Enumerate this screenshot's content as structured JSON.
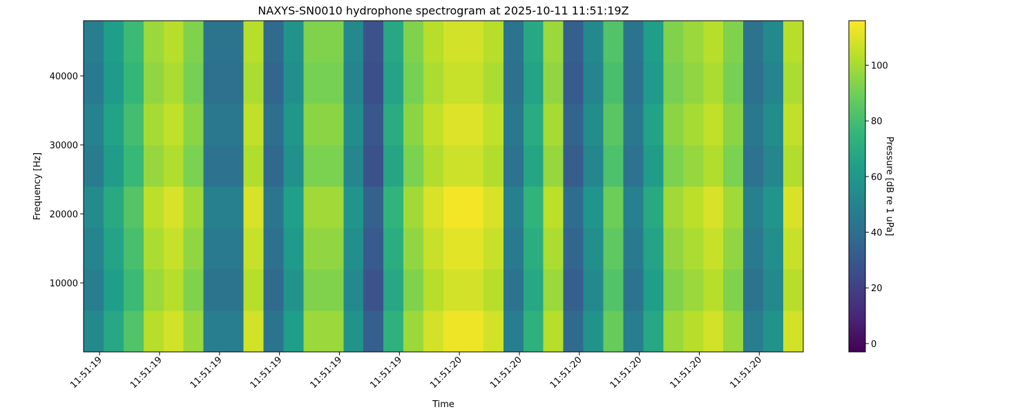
{
  "chart_data": {
    "type": "heatmap",
    "title": "NAXYS-SN0010 hydrophone spectrogram at 2025-10-11 11:51:19Z",
    "x_label": "Time",
    "y_label": "Frequency [Hz]",
    "colorbar_label": "Pressure [dB re 1 uPa]",
    "colormap": "viridis",
    "x": [
      19.085,
      19.135,
      19.185,
      19.235,
      19.285,
      19.335,
      19.385,
      19.435,
      19.485,
      19.535,
      19.585,
      19.635,
      19.685,
      19.735,
      19.785,
      19.835,
      19.885,
      19.935,
      19.985,
      20.035,
      20.085,
      20.135,
      20.185,
      20.235,
      20.285,
      20.335,
      20.385,
      20.435,
      20.485,
      20.535,
      20.585,
      20.635,
      20.685,
      20.735,
      20.785,
      20.835
    ],
    "y": [
      3000,
      9000,
      15000,
      21000,
      27000,
      33000,
      39000,
      45000
    ],
    "z": [
      [
        53,
        68,
        83,
        103,
        108,
        98,
        48,
        48,
        108,
        43,
        63,
        98,
        98,
        58,
        33,
        73,
        98,
        108,
        113,
        113,
        108,
        48,
        73,
        103,
        38,
        58,
        88,
        48,
        68,
        98,
        103,
        108,
        98,
        48,
        58,
        108
      ],
      [
        48,
        63,
        78,
        98,
        103,
        93,
        43,
        43,
        103,
        38,
        58,
        93,
        93,
        53,
        28,
        68,
        93,
        103,
        108,
        108,
        103,
        43,
        68,
        98,
        33,
        53,
        83,
        43,
        63,
        93,
        98,
        103,
        93,
        43,
        53,
        103
      ],
      [
        51,
        66,
        81,
        101,
        106,
        96,
        46,
        46,
        106,
        41,
        61,
        96,
        96,
        56,
        31,
        71,
        96,
        106,
        111,
        111,
        106,
        46,
        71,
        101,
        36,
        56,
        86,
        46,
        66,
        96,
        101,
        106,
        96,
        46,
        56,
        106
      ],
      [
        54,
        69,
        84,
        104,
        109,
        99,
        49,
        49,
        109,
        44,
        64,
        99,
        99,
        59,
        34,
        74,
        99,
        109,
        114,
        114,
        109,
        49,
        74,
        104,
        39,
        59,
        89,
        49,
        69,
        99,
        104,
        109,
        99,
        49,
        59,
        109
      ],
      [
        47,
        62,
        77,
        97,
        102,
        92,
        42,
        42,
        102,
        37,
        57,
        92,
        92,
        52,
        27,
        67,
        92,
        102,
        107,
        107,
        102,
        42,
        67,
        97,
        32,
        52,
        82,
        42,
        62,
        92,
        97,
        102,
        92,
        42,
        52,
        102
      ],
      [
        50,
        65,
        80,
        100,
        105,
        95,
        45,
        45,
        105,
        40,
        60,
        95,
        95,
        55,
        30,
        70,
        95,
        105,
        110,
        110,
        105,
        45,
        70,
        100,
        35,
        55,
        85,
        45,
        65,
        95,
        100,
        105,
        95,
        45,
        55,
        105
      ],
      [
        46,
        61,
        76,
        96,
        101,
        91,
        41,
        41,
        101,
        36,
        56,
        91,
        91,
        51,
        26,
        66,
        91,
        101,
        106,
        106,
        101,
        41,
        66,
        96,
        31,
        51,
        81,
        41,
        61,
        91,
        96,
        101,
        91,
        41,
        51,
        101
      ],
      [
        48,
        63,
        78,
        98,
        103,
        93,
        43,
        43,
        103,
        38,
        58,
        93,
        93,
        53,
        28,
        68,
        93,
        103,
        108,
        108,
        103,
        43,
        68,
        98,
        33,
        53,
        83,
        43,
        63,
        93,
        98,
        103,
        93,
        43,
        53,
        103
      ]
    ],
    "xlim": [
      19.06,
      20.86
    ],
    "xticks": [
      {
        "value": 19.1,
        "label": "11:51:19"
      },
      {
        "value": 19.25,
        "label": "11:51:19"
      },
      {
        "value": 19.4,
        "label": "11:51:19"
      },
      {
        "value": 19.55,
        "label": "11:51:19"
      },
      {
        "value": 19.7,
        "label": "11:51:19"
      },
      {
        "value": 19.85,
        "label": "11:51:19"
      },
      {
        "value": 20,
        "label": "11:51:20"
      },
      {
        "value": 20.15,
        "label": "11:51:20"
      },
      {
        "value": 20.3,
        "label": "11:51:20"
      },
      {
        "value": 20.45,
        "label": "11:51:20"
      },
      {
        "value": 20.6,
        "label": "11:51:20"
      },
      {
        "value": 20.75,
        "label": "11:51:20"
      }
    ],
    "ylim": [
      0,
      48000
    ],
    "yticks": [
      10000,
      20000,
      30000,
      40000
    ],
    "clim": [
      -3,
      116
    ],
    "cticks": [
      0,
      20,
      40,
      60,
      80,
      100
    ]
  }
}
